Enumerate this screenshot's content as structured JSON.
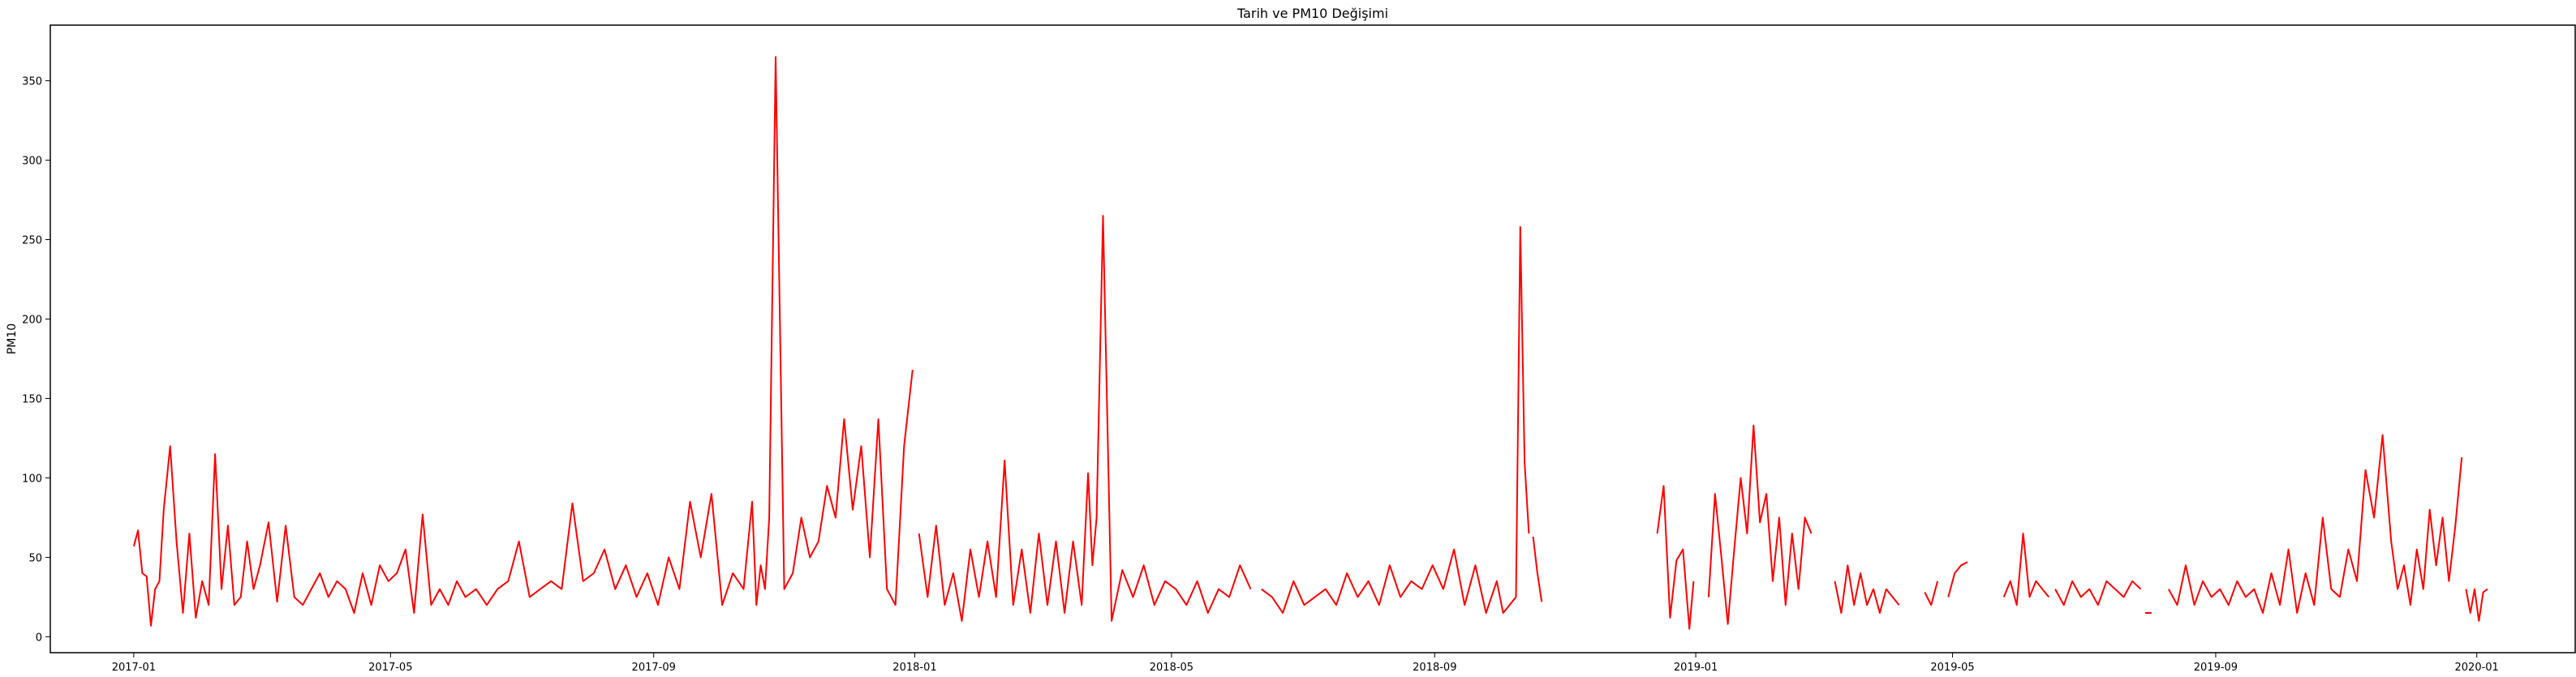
{
  "chart_data": {
    "type": "line",
    "title": "Tarih ve PM10 Değişimi",
    "xlabel": "",
    "ylabel": "PM10",
    "line_color": "#ff0000",
    "grid": false,
    "xlim": [
      "2016-11-23",
      "2020-02-16"
    ],
    "ylim": [
      -10,
      385
    ],
    "x_ticks": [
      "2017-01",
      "2017-05",
      "2017-09",
      "2018-01",
      "2018-05",
      "2018-09",
      "2019-01",
      "2019-05",
      "2019-09",
      "2020-01"
    ],
    "y_ticks": [
      0,
      50,
      100,
      150,
      200,
      250,
      300,
      350
    ],
    "segments": [
      {
        "x": [
          "2017-01-01",
          "2017-01-03",
          "2017-01-05",
          "2017-01-07",
          "2017-01-09",
          "2017-01-11",
          "2017-01-13",
          "2017-01-15",
          "2017-01-18",
          "2017-01-21",
          "2017-01-24",
          "2017-01-27",
          "2017-01-30",
          "2017-02-02",
          "2017-02-05",
          "2017-02-08",
          "2017-02-11",
          "2017-02-14",
          "2017-02-17",
          "2017-02-20",
          "2017-02-23",
          "2017-02-26",
          "2017-03-01",
          "2017-03-05",
          "2017-03-09",
          "2017-03-13",
          "2017-03-17",
          "2017-03-21",
          "2017-03-25",
          "2017-03-29",
          "2017-04-02",
          "2017-04-06",
          "2017-04-10",
          "2017-04-14",
          "2017-04-18",
          "2017-04-22",
          "2017-04-26",
          "2017-04-30",
          "2017-05-04",
          "2017-05-08",
          "2017-05-12",
          "2017-05-16",
          "2017-05-20",
          "2017-05-24",
          "2017-05-28",
          "2017-06-01",
          "2017-06-05",
          "2017-06-10",
          "2017-06-15",
          "2017-06-20",
          "2017-06-25",
          "2017-06-30",
          "2017-07-05",
          "2017-07-10",
          "2017-07-15",
          "2017-07-20",
          "2017-07-25",
          "2017-07-30",
          "2017-08-04",
          "2017-08-09",
          "2017-08-14",
          "2017-08-19",
          "2017-08-24",
          "2017-08-29",
          "2017-09-03",
          "2017-09-08",
          "2017-09-13",
          "2017-09-18",
          "2017-09-23",
          "2017-09-28",
          "2017-10-03",
          "2017-10-08",
          "2017-10-13",
          "2017-10-17",
          "2017-10-19",
          "2017-10-21",
          "2017-10-23",
          "2017-10-25",
          "2017-10-28",
          "2017-11-01",
          "2017-11-05",
          "2017-11-09",
          "2017-11-13",
          "2017-11-17",
          "2017-11-21",
          "2017-11-25",
          "2017-11-29",
          "2017-12-03",
          "2017-12-07",
          "2017-12-11",
          "2017-12-15",
          "2017-12-19",
          "2017-12-23",
          "2017-12-27",
          "2017-12-31"
        ],
        "y": [
          57,
          67,
          40,
          38,
          7,
          30,
          35,
          80,
          120,
          60,
          15,
          65,
          12,
          35,
          20,
          115,
          30,
          70,
          20,
          25,
          60,
          30,
          45,
          72,
          22,
          70,
          25,
          20,
          30,
          40,
          25,
          35,
          30,
          15,
          40,
          20,
          45,
          35,
          40,
          55,
          15,
          77,
          20,
          30,
          20,
          35,
          25,
          30,
          20,
          30,
          35,
          60,
          25,
          30,
          35,
          30,
          84,
          35,
          40,
          55,
          30,
          45,
          25,
          40,
          20,
          50,
          30,
          85,
          50,
          90,
          20,
          40,
          30,
          85,
          20,
          45,
          30,
          75,
          365,
          30,
          40,
          75,
          50,
          60,
          95,
          75,
          137,
          80,
          120,
          50,
          137,
          30,
          20,
          120,
          168
        ]
      },
      {
        "x": [
          "2018-01-03",
          "2018-01-07",
          "2018-01-11",
          "2018-01-15",
          "2018-01-19",
          "2018-01-23",
          "2018-01-27",
          "2018-01-31",
          "2018-02-04",
          "2018-02-08",
          "2018-02-12",
          "2018-02-16",
          "2018-02-20",
          "2018-02-24",
          "2018-02-28",
          "2018-03-04",
          "2018-03-08",
          "2018-03-12",
          "2018-03-16",
          "2018-03-20",
          "2018-03-23",
          "2018-03-25",
          "2018-03-27",
          "2018-03-30",
          "2018-04-03",
          "2018-04-08",
          "2018-04-13",
          "2018-04-18",
          "2018-04-23",
          "2018-04-28",
          "2018-05-03",
          "2018-05-08",
          "2018-05-13",
          "2018-05-18",
          "2018-05-23",
          "2018-05-28",
          "2018-06-02",
          "2018-06-07"
        ],
        "y": [
          65,
          25,
          70,
          20,
          40,
          10,
          55,
          25,
          60,
          25,
          111,
          20,
          55,
          15,
          65,
          20,
          60,
          15,
          60,
          20,
          103,
          45,
          75,
          265,
          10,
          42,
          25,
          45,
          20,
          35,
          30,
          20,
          35,
          15,
          30,
          25,
          45,
          30
        ]
      },
      {
        "x": [
          "2018-06-12",
          "2018-06-17",
          "2018-06-22",
          "2018-06-27",
          "2018-07-02",
          "2018-07-07",
          "2018-07-12",
          "2018-07-17",
          "2018-07-22",
          "2018-07-27",
          "2018-08-01",
          "2018-08-06",
          "2018-08-11",
          "2018-08-16",
          "2018-08-21",
          "2018-08-26",
          "2018-08-31",
          "2018-09-05",
          "2018-09-10",
          "2018-09-15",
          "2018-09-20",
          "2018-09-25",
          "2018-09-30",
          "2018-10-03",
          "2018-10-06",
          "2018-10-09",
          "2018-10-11",
          "2018-10-13",
          "2018-10-15"
        ],
        "y": [
          30,
          25,
          15,
          35,
          20,
          25,
          30,
          20,
          40,
          25,
          35,
          20,
          45,
          25,
          35,
          30,
          45,
          30,
          55,
          20,
          45,
          15,
          35,
          15,
          20,
          25,
          258,
          110,
          65
        ]
      },
      {
        "x": [
          "2018-10-17",
          "2018-10-19",
          "2018-10-21"
        ],
        "y": [
          63,
          40,
          22
        ]
      },
      {
        "x": [
          "2018-12-14",
          "2018-12-17",
          "2018-12-20",
          "2018-12-23",
          "2018-12-26",
          "2018-12-29",
          "2018-12-31"
        ],
        "y": [
          65,
          95,
          12,
          48,
          55,
          5,
          35
        ]
      },
      {
        "x": [
          "2019-01-07",
          "2019-01-10",
          "2019-01-13",
          "2019-01-16",
          "2019-01-19",
          "2019-01-22",
          "2019-01-25",
          "2019-01-28",
          "2019-01-31",
          "2019-02-03",
          "2019-02-06",
          "2019-02-09",
          "2019-02-12",
          "2019-02-15",
          "2019-02-18",
          "2019-02-21",
          "2019-02-24"
        ],
        "y": [
          25,
          90,
          50,
          8,
          55,
          100,
          65,
          133,
          72,
          90,
          35,
          75,
          20,
          65,
          30,
          75,
          65
        ]
      },
      {
        "x": [
          "2019-03-07",
          "2019-03-10",
          "2019-03-13",
          "2019-03-16",
          "2019-03-19",
          "2019-03-22",
          "2019-03-25",
          "2019-03-28",
          "2019-03-31",
          "2019-04-03",
          "2019-04-06"
        ],
        "y": [
          35,
          15,
          45,
          20,
          40,
          20,
          30,
          15,
          30,
          25,
          20
        ]
      },
      {
        "x": [
          "2019-04-18",
          "2019-04-21",
          "2019-04-24"
        ],
        "y": [
          28,
          20,
          35
        ]
      },
      {
        "x": [
          "2019-04-29",
          "2019-05-02",
          "2019-05-05",
          "2019-05-08"
        ],
        "y": [
          25,
          40,
          45,
          47
        ]
      },
      {
        "x": [
          "2019-05-25",
          "2019-05-28",
          "2019-05-31",
          "2019-06-03",
          "2019-06-06",
          "2019-06-09",
          "2019-06-12",
          "2019-06-15"
        ],
        "y": [
          25,
          35,
          20,
          65,
          25,
          35,
          30,
          25
        ]
      },
      {
        "x": [
          "2019-06-18",
          "2019-06-22",
          "2019-06-26",
          "2019-06-30",
          "2019-07-04",
          "2019-07-08",
          "2019-07-12",
          "2019-07-16",
          "2019-07-20",
          "2019-07-24",
          "2019-07-28"
        ],
        "y": [
          30,
          20,
          35,
          25,
          30,
          20,
          35,
          30,
          25,
          35,
          30
        ]
      },
      {
        "x": [
          "2019-07-30",
          "2019-08-02"
        ],
        "y": [
          15,
          15
        ]
      },
      {
        "x": [
          "2019-08-10",
          "2019-08-14",
          "2019-08-18",
          "2019-08-22",
          "2019-08-26",
          "2019-08-30",
          "2019-09-03",
          "2019-09-07",
          "2019-09-11",
          "2019-09-15",
          "2019-09-19",
          "2019-09-23",
          "2019-09-27",
          "2019-10-01",
          "2019-10-05",
          "2019-10-09",
          "2019-10-13",
          "2019-10-17",
          "2019-10-21",
          "2019-10-25",
          "2019-10-29",
          "2019-11-02",
          "2019-11-06",
          "2019-11-10",
          "2019-11-14",
          "2019-11-18",
          "2019-11-22",
          "2019-11-25",
          "2019-11-28",
          "2019-12-01",
          "2019-12-04",
          "2019-12-07",
          "2019-12-10",
          "2019-12-13",
          "2019-12-16",
          "2019-12-19",
          "2019-12-22",
          "2019-12-25"
        ],
        "y": [
          30,
          20,
          45,
          20,
          35,
          25,
          30,
          20,
          35,
          25,
          30,
          15,
          40,
          20,
          55,
          15,
          40,
          20,
          75,
          30,
          25,
          55,
          35,
          105,
          75,
          127,
          60,
          30,
          45,
          20,
          55,
          30,
          80,
          45,
          75,
          35,
          70,
          113
        ]
      },
      {
        "x": [
          "2019-12-27",
          "2019-12-29",
          "2019-12-31",
          "2020-01-02",
          "2020-01-04",
          "2020-01-06"
        ],
        "y": [
          30,
          15,
          30,
          10,
          28,
          30
        ]
      }
    ]
  }
}
